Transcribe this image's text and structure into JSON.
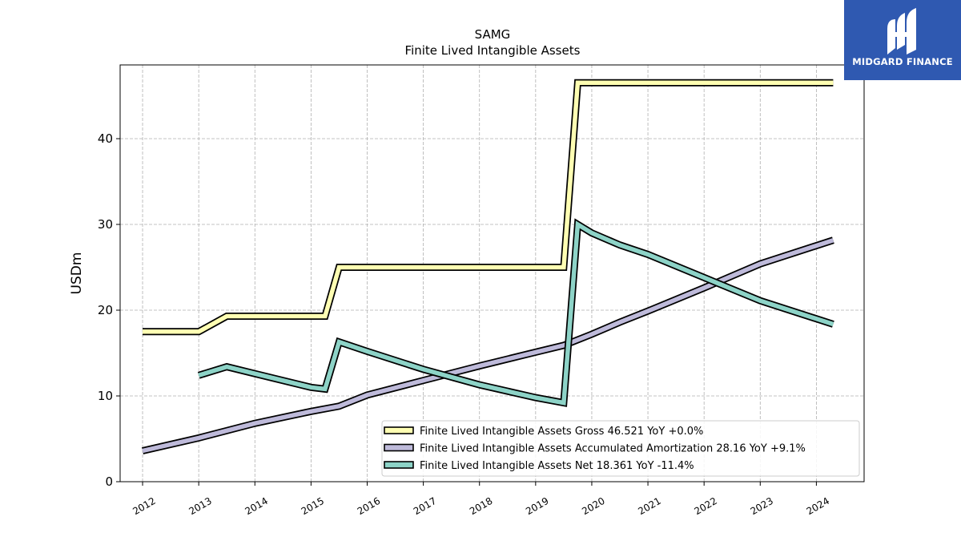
{
  "brand": {
    "name": "MIDGARD FINANCE",
    "logo_icon": "midgard-logo-icon",
    "color": "#2f59b1"
  },
  "chart_data": {
    "type": "line",
    "title": "SAMG",
    "subtitle": "Finite Lived Intangible Assets",
    "xlabel": "",
    "ylabel": "USDm",
    "xlim": [
      2011.6,
      2024.85
    ],
    "ylim": [
      0,
      48.6
    ],
    "x_ticks": [
      "2012",
      "2013",
      "2014",
      "2015",
      "2016",
      "2017",
      "2018",
      "2019",
      "2020",
      "2021",
      "2022",
      "2023",
      "2024"
    ],
    "y_ticks": [
      "0",
      "10",
      "20",
      "30",
      "40"
    ],
    "grid": true,
    "legend_position": "lower-right",
    "series": [
      {
        "name": "Finite Lived Intangible Assets Gross",
        "legend_label": "Finite Lived Intangible Assets Gross  46.521 YoY +0.0%",
        "color": "#ffffb3",
        "points": [
          [
            2012.0,
            17.5
          ],
          [
            2013.0,
            17.5
          ],
          [
            2013.5,
            19.3
          ],
          [
            2015.25,
            19.3
          ],
          [
            2015.5,
            25.0
          ],
          [
            2019.5,
            25.0
          ],
          [
            2019.75,
            46.521
          ],
          [
            2024.3,
            46.521
          ]
        ]
      },
      {
        "name": "Finite Lived Intangible Assets Accumulated Amortization",
        "legend_label": "Finite Lived Intangible Assets Accumulated Amortization  28.16 YoY +9.1%",
        "color": "#bebada",
        "points": [
          [
            2012.0,
            3.6
          ],
          [
            2013.0,
            5.1
          ],
          [
            2014.0,
            6.8
          ],
          [
            2015.0,
            8.2
          ],
          [
            2015.5,
            8.8
          ],
          [
            2016.0,
            10.1
          ],
          [
            2017.0,
            11.8
          ],
          [
            2018.0,
            13.5
          ],
          [
            2019.0,
            15.1
          ],
          [
            2019.5,
            15.9
          ],
          [
            2020.0,
            17.2
          ],
          [
            2020.5,
            18.6
          ],
          [
            2021.0,
            19.9
          ],
          [
            2022.0,
            22.6
          ],
          [
            2023.0,
            25.4
          ],
          [
            2024.3,
            28.16
          ]
        ]
      },
      {
        "name": "Finite Lived Intangible Assets Net",
        "legend_label": "Finite Lived Intangible Assets Net  18.361 YoY -11.4%",
        "color": "#8dd3c7",
        "points": [
          [
            2013.0,
            12.4
          ],
          [
            2013.5,
            13.4
          ],
          [
            2014.0,
            12.6
          ],
          [
            2015.0,
            11.0
          ],
          [
            2015.25,
            10.8
          ],
          [
            2015.5,
            16.3
          ],
          [
            2016.0,
            15.2
          ],
          [
            2017.0,
            13.1
          ],
          [
            2018.0,
            11.3
          ],
          [
            2019.0,
            9.8
          ],
          [
            2019.5,
            9.2
          ],
          [
            2019.75,
            30.0
          ],
          [
            2020.0,
            29.0
          ],
          [
            2020.5,
            27.6
          ],
          [
            2021.0,
            26.5
          ],
          [
            2022.0,
            23.8
          ],
          [
            2023.0,
            21.1
          ],
          [
            2024.3,
            18.361
          ]
        ]
      }
    ]
  }
}
